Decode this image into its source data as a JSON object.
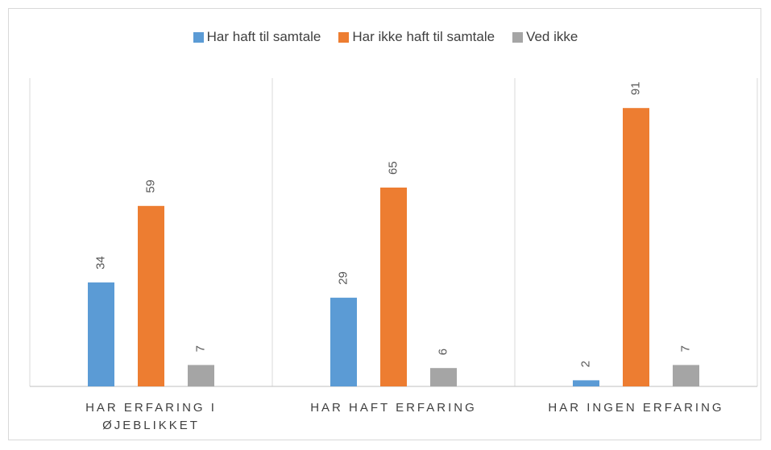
{
  "chart_data": {
    "type": "bar",
    "categories": [
      "HAR ERFARING I ØJEBLIKKET",
      "HAR HAFT ERFARING",
      "HAR INGEN ERFARING"
    ],
    "series": [
      {
        "name": "Har haft til samtale",
        "color": "#5b9bd5",
        "values": [
          34,
          29,
          2
        ]
      },
      {
        "name": "Har ikke haft til samtale",
        "color": "#ed7d31",
        "values": [
          59,
          65,
          91
        ]
      },
      {
        "name": "Ved ikke",
        "color": "#a5a5a5",
        "values": [
          7,
          6,
          7
        ]
      }
    ],
    "ylim": [
      0,
      100
    ],
    "legend": "top"
  }
}
